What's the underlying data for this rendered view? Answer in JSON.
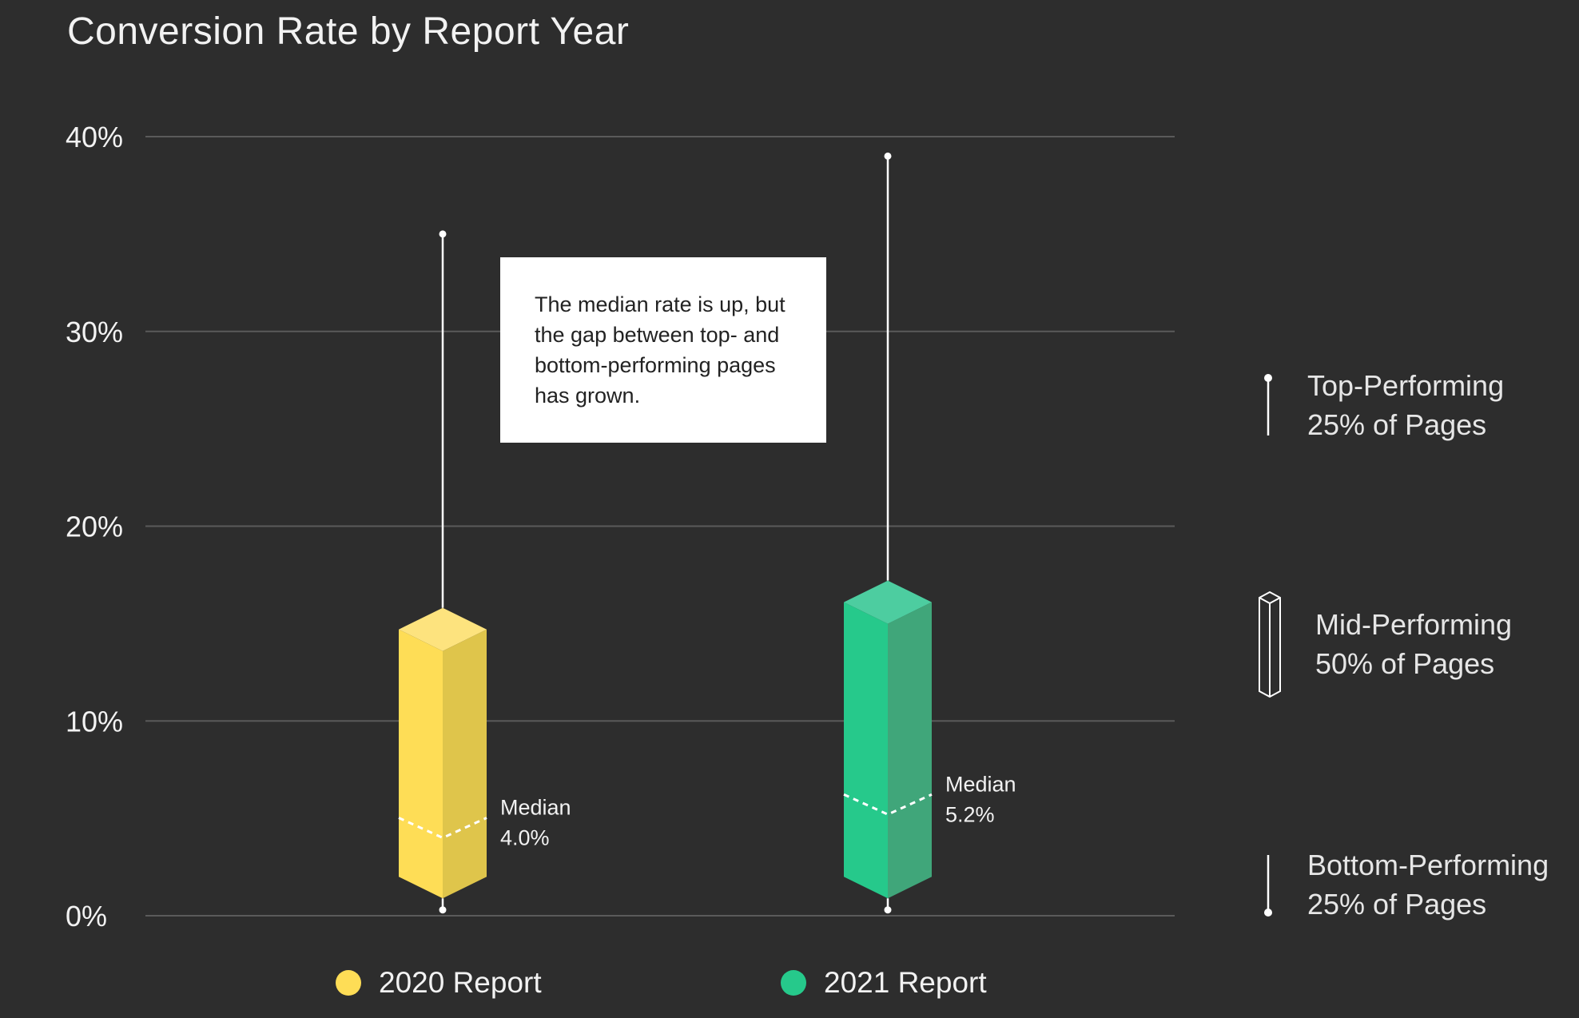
{
  "chart_data": {
    "type": "box",
    "title": "Conversion Rate by Report Year",
    "ylabel": "",
    "ylim": [
      0,
      40
    ],
    "yticks": [
      "0%",
      "10%",
      "20%",
      "30%",
      "40%"
    ],
    "ytick_values": [
      0,
      10,
      20,
      30,
      40
    ],
    "series": [
      {
        "name": "2020 Report",
        "color": "#fedd56",
        "min": 0.3,
        "q1": 2.0,
        "median": 4.0,
        "q3": 14.7,
        "max": 35.0,
        "median_label": "Median",
        "median_value_label": "4.0%"
      },
      {
        "name": "2021 Report",
        "color": "#26c98b",
        "min": 0.3,
        "q1": 2.0,
        "median": 5.2,
        "q3": 16.1,
        "max": 39.0,
        "median_label": "Median",
        "median_value_label": "5.2%"
      }
    ],
    "annotation": "The median rate is up, but the gap between top- and bottom-performing pages has grown.",
    "grid": true,
    "legend_position": "bottom"
  },
  "side_legend": {
    "top": {
      "line1": "Top-Performing",
      "line2": "25% of Pages",
      "icon": "whisker-top-icon"
    },
    "mid": {
      "line1": "Mid-Performing",
      "line2": "50% of Pages",
      "icon": "box-icon"
    },
    "bottom": {
      "line1": "Bottom-Performing",
      "line2": "25% of Pages",
      "icon": "whisker-bottom-icon"
    }
  }
}
